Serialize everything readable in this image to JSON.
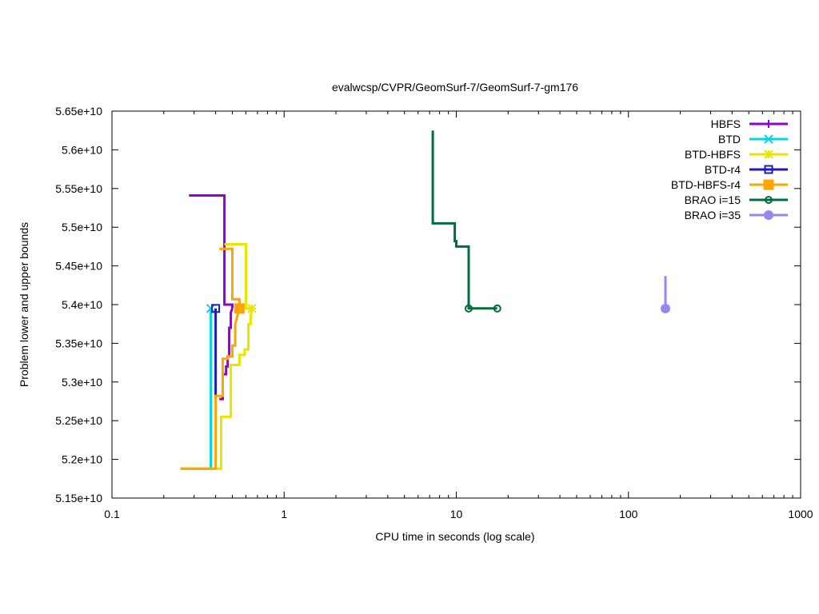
{
  "chart_data": {
    "type": "line",
    "title": "evalwcsp/CVPR/GeomSurf-7/GeomSurf-7-gm176",
    "xlabel": "CPU time in seconds (log scale)",
    "ylabel": "Problem lower and upper bounds",
    "xscale": "log",
    "xlim": [
      0.1,
      1000
    ],
    "ylim": [
      51500000000,
      56500000000
    ],
    "xticks": [
      0.1,
      1,
      10,
      100,
      1000
    ],
    "xtick_labels": [
      "0.1",
      "1",
      "10",
      "100",
      "1000"
    ],
    "yticks": [
      51500000000,
      52000000000,
      52500000000,
      53000000000,
      53500000000,
      54000000000,
      54500000000,
      55000000000,
      55500000000,
      56000000000,
      56500000000
    ],
    "ytick_labels": [
      "5.15e+10",
      "5.2e+10",
      "5.25e+10",
      "5.3e+10",
      "5.35e+10",
      "5.4e+10",
      "5.45e+10",
      "5.5e+10",
      "5.55e+10",
      "5.6e+10",
      "5.65e+10"
    ],
    "grid": false,
    "legend_position": "top-right",
    "series": [
      {
        "name": "HBFS",
        "color": "#9400d3",
        "marker": "plus",
        "upper": [
          [
            0.28,
            55410000000
          ],
          [
            0.45,
            55410000000
          ],
          [
            0.45,
            54000000000
          ],
          [
            0.5,
            54000000000
          ],
          [
            0.5,
            53950000000
          ]
        ],
        "lower": [
          [
            0.42,
            52780000000
          ],
          [
            0.44,
            52780000000
          ],
          [
            0.44,
            53100000000
          ],
          [
            0.46,
            53100000000
          ],
          [
            0.46,
            53200000000
          ],
          [
            0.47,
            53200000000
          ],
          [
            0.47,
            53330000000
          ],
          [
            0.48,
            53330000000
          ],
          [
            0.48,
            53700000000
          ],
          [
            0.49,
            53700000000
          ],
          [
            0.49,
            53900000000
          ],
          [
            0.5,
            53950000000
          ]
        ],
        "markers": []
      },
      {
        "name": "BTD",
        "color": "#00d8e0",
        "marker": "x",
        "upper": [],
        "lower": [
          [
            0.25,
            51880000000
          ],
          [
            0.375,
            51880000000
          ],
          [
            0.375,
            53950000000
          ]
        ],
        "markers": [
          [
            0.375,
            53950000000
          ]
        ]
      },
      {
        "name": "BTD-HBFS",
        "color": "#e6e600",
        "marker": "star",
        "upper": [
          [
            0.45,
            54780000000
          ],
          [
            0.6,
            54780000000
          ],
          [
            0.6,
            54750000000
          ],
          [
            0.6,
            53950000000
          ],
          [
            0.65,
            53950000000
          ]
        ],
        "lower": [
          [
            0.25,
            51880000000
          ],
          [
            0.43,
            51880000000
          ],
          [
            0.43,
            52550000000
          ],
          [
            0.49,
            52550000000
          ],
          [
            0.49,
            53220000000
          ],
          [
            0.55,
            53220000000
          ],
          [
            0.55,
            53350000000
          ],
          [
            0.59,
            53350000000
          ],
          [
            0.59,
            53420000000
          ],
          [
            0.62,
            53420000000
          ],
          [
            0.62,
            53750000000
          ],
          [
            0.64,
            53750000000
          ],
          [
            0.64,
            53850000000
          ],
          [
            0.65,
            53950000000
          ]
        ],
        "markers": [
          [
            0.65,
            53950000000
          ]
        ]
      },
      {
        "name": "BTD-r4",
        "color": "#1c1cb8",
        "marker": "open-square",
        "upper": [],
        "lower": [
          [
            0.4,
            52780000000
          ],
          [
            0.4,
            53950000000
          ]
        ],
        "markers": [
          [
            0.4,
            53950000000
          ]
        ]
      },
      {
        "name": "BTD-HBFS-r4",
        "color": "#ffa500",
        "marker": "filled-square",
        "upper": [
          [
            0.42,
            54720000000
          ],
          [
            0.5,
            54720000000
          ],
          [
            0.5,
            54070000000
          ],
          [
            0.55,
            54070000000
          ],
          [
            0.55,
            53950000000
          ]
        ],
        "lower": [
          [
            0.25,
            51880000000
          ],
          [
            0.4,
            51880000000
          ],
          [
            0.4,
            52820000000
          ],
          [
            0.44,
            52820000000
          ],
          [
            0.44,
            53300000000
          ],
          [
            0.47,
            53300000000
          ],
          [
            0.47,
            53330000000
          ],
          [
            0.5,
            53330000000
          ],
          [
            0.5,
            53470000000
          ],
          [
            0.52,
            53470000000
          ],
          [
            0.52,
            53750000000
          ],
          [
            0.55,
            53950000000
          ]
        ],
        "markers": [
          [
            0.55,
            53950000000
          ]
        ]
      },
      {
        "name": "BRAO i=15",
        "color": "#006d3c",
        "marker": "open-circle",
        "upper": [
          [
            7.3,
            56250000000
          ],
          [
            7.3,
            55050000000
          ],
          [
            9.8,
            55050000000
          ],
          [
            9.8,
            54820000000
          ],
          [
            10,
            54820000000
          ],
          [
            10,
            54750000000
          ],
          [
            11.8,
            54750000000
          ],
          [
            11.8,
            53950000000
          ],
          [
            17.3,
            53950000000
          ]
        ],
        "lower": [],
        "markers": [
          [
            11.8,
            53950000000
          ],
          [
            17.3,
            53950000000
          ]
        ]
      },
      {
        "name": "BRAO i=35",
        "color": "#9b86f0",
        "marker": "filled-circle",
        "upper": [
          [
            164,
            54370000000
          ],
          [
            164,
            53950000000
          ]
        ],
        "lower": [],
        "markers": [
          [
            164,
            53950000000
          ]
        ]
      }
    ]
  }
}
